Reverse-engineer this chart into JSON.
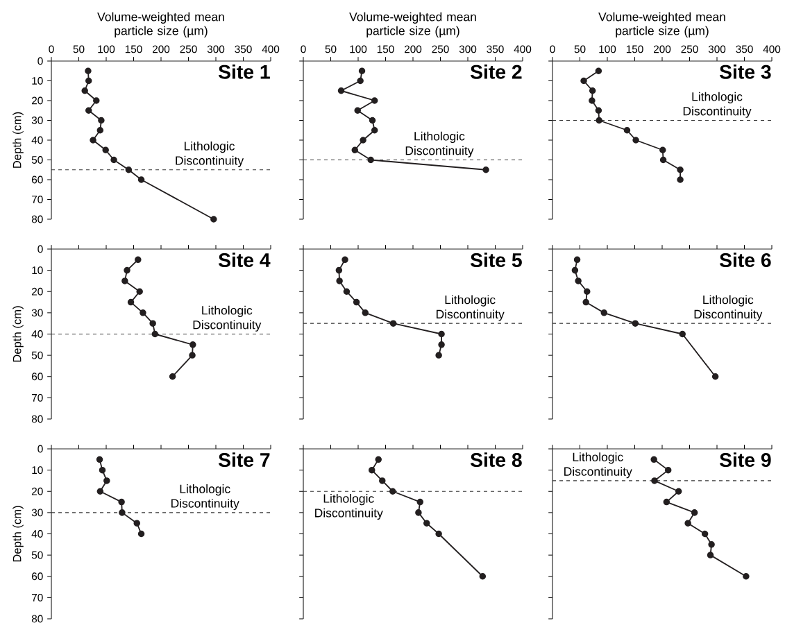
{
  "chart_data": [
    {
      "type": "line",
      "title": "Site 1",
      "xlabel": "Volume-weighted mean particle size (µm)",
      "ylabel": "Depth (cm)",
      "xlim": [
        0,
        400
      ],
      "xticks": [
        0,
        50,
        100,
        150,
        200,
        250,
        300,
        350,
        400
      ],
      "ylim": [
        80,
        0
      ],
      "yticks": [
        0,
        10,
        20,
        30,
        40,
        50,
        60,
        70,
        80
      ],
      "marker": "circle",
      "line_style": "solid",
      "series": [
        {
          "color": "#231f20",
          "x": [
            67,
            68,
            61,
            82,
            68,
            91,
            89,
            76,
            99,
            114,
            141,
            164,
            296
          ],
          "values": [
            5,
            10,
            15,
            20,
            25,
            30,
            35,
            40,
            45,
            50,
            55,
            60,
            80
          ]
        }
      ],
      "ref_lines": [
        {
          "axis": "y",
          "value": 55,
          "label": "Lithologic Discontinuity",
          "line_style": "dashed"
        }
      ]
    },
    {
      "type": "line",
      "title": "Site 2",
      "xlabel": "Volume-weighted mean particle size (µm)",
      "xlim": [
        0,
        400
      ],
      "xticks": [
        0,
        50,
        100,
        150,
        200,
        250,
        300,
        350,
        400
      ],
      "ylim": [
        80,
        0
      ],
      "yticks": [
        0,
        10,
        20,
        30,
        40,
        50,
        60,
        70,
        80
      ],
      "tick_labels": "x",
      "marker": "circle",
      "line_style": "solid",
      "series": [
        {
          "color": "#231f20",
          "x": [
            107,
            104,
            69,
            130,
            99,
            126,
            130,
            109,
            94,
            123,
            333
          ],
          "values": [
            5,
            10,
            15,
            20,
            25,
            30,
            35,
            40,
            45,
            50,
            55
          ]
        }
      ],
      "ref_lines": [
        {
          "axis": "y",
          "value": 50,
          "label": "Lithologic Discontinuity",
          "line_style": "dashed"
        }
      ]
    },
    {
      "type": "line",
      "title": "Site 3",
      "xlabel": "Volume-weighted mean particle size (µm)",
      "xlim": [
        0,
        400
      ],
      "xticks": [
        0,
        50,
        100,
        150,
        200,
        250,
        300,
        350,
        400
      ],
      "ylim": [
        80,
        0
      ],
      "yticks": [
        0,
        10,
        20,
        30,
        40,
        50,
        60,
        70,
        80
      ],
      "tick_labels": "x",
      "marker": "circle",
      "line_style": "solid",
      "series": [
        {
          "color": "#231f20",
          "x": [
            84,
            57,
            73,
            72,
            84,
            85,
            136,
            152,
            201,
            202,
            233,
            233
          ],
          "values": [
            5,
            10,
            15,
            20,
            25,
            30,
            35,
            40,
            45,
            50,
            55,
            60
          ]
        }
      ],
      "ref_lines": [
        {
          "axis": "y",
          "value": 30,
          "label": "Lithologic Discontinuity",
          "line_style": "dashed"
        }
      ]
    },
    {
      "type": "line",
      "title": "Site 4",
      "ylabel": "Depth (cm)",
      "xlim": [
        0,
        400
      ],
      "xticks": [
        0,
        50,
        100,
        150,
        200,
        250,
        300,
        350,
        400
      ],
      "ylim": [
        80,
        0
      ],
      "yticks": [
        0,
        10,
        20,
        30,
        40,
        50,
        60,
        70,
        80
      ],
      "tick_labels": "y",
      "marker": "circle",
      "line_style": "solid",
      "series": [
        {
          "color": "#231f20",
          "x": [
            158,
            138,
            134,
            161,
            145,
            167,
            185,
            189,
            258,
            257,
            221
          ],
          "values": [
            5,
            10,
            15,
            20,
            25,
            30,
            35,
            40,
            45,
            50,
            60
          ]
        }
      ],
      "ref_lines": [
        {
          "axis": "y",
          "value": 40,
          "label": "Lithologic Discontinuity",
          "line_style": "dashed"
        }
      ]
    },
    {
      "type": "line",
      "title": "Site 5",
      "xlim": [
        0,
        400
      ],
      "xticks": [
        0,
        50,
        100,
        150,
        200,
        250,
        300,
        350,
        400
      ],
      "ylim": [
        80,
        0
      ],
      "yticks": [
        0,
        10,
        20,
        30,
        40,
        50,
        60,
        70,
        80
      ],
      "tick_labels": false,
      "marker": "circle",
      "line_style": "solid",
      "series": [
        {
          "color": "#231f20",
          "x": [
            76,
            65,
            66,
            79,
            97,
            113,
            164,
            252,
            252,
            247
          ],
          "values": [
            5,
            10,
            15,
            20,
            25,
            30,
            35,
            40,
            45,
            50
          ]
        }
      ],
      "ref_lines": [
        {
          "axis": "y",
          "value": 35,
          "label": "Lithologic Discontinuity",
          "line_style": "dashed"
        }
      ]
    },
    {
      "type": "line",
      "title": "Site 6",
      "xlim": [
        0,
        400
      ],
      "xticks": [
        0,
        50,
        100,
        150,
        200,
        250,
        300,
        350,
        400
      ],
      "ylim": [
        80,
        0
      ],
      "yticks": [
        0,
        10,
        20,
        30,
        40,
        50,
        60,
        70,
        80
      ],
      "tick_labels": false,
      "marker": "circle",
      "line_style": "solid",
      "series": [
        {
          "color": "#231f20",
          "x": [
            45,
            41,
            47,
            63,
            61,
            94,
            151,
            237,
            297
          ],
          "values": [
            5,
            10,
            15,
            20,
            25,
            30,
            35,
            40,
            60
          ]
        }
      ],
      "ref_lines": [
        {
          "axis": "y",
          "value": 35,
          "label": "Lithologic Discontinuity",
          "line_style": "dashed"
        }
      ]
    },
    {
      "type": "line",
      "title": "Site 7",
      "ylabel": "Depth (cm)",
      "xlim": [
        0,
        400
      ],
      "xticks": [
        0,
        50,
        100,
        150,
        200,
        250,
        300,
        350,
        400
      ],
      "ylim": [
        80,
        0
      ],
      "yticks": [
        0,
        10,
        20,
        30,
        40,
        50,
        60,
        70,
        80
      ],
      "tick_labels": "y",
      "marker": "circle",
      "line_style": "solid",
      "series": [
        {
          "color": "#231f20",
          "x": [
            88,
            93,
            101,
            89,
            128,
            129,
            156,
            164
          ],
          "values": [
            5,
            10,
            15,
            20,
            25,
            30,
            35,
            40
          ]
        }
      ],
      "ref_lines": [
        {
          "axis": "y",
          "value": 30,
          "label": "Lithologic Discontinuity",
          "line_style": "dashed"
        }
      ]
    },
    {
      "type": "line",
      "title": "Site 8",
      "xlim": [
        0,
        400
      ],
      "xticks": [
        0,
        50,
        100,
        150,
        200,
        250,
        300,
        350,
        400
      ],
      "ylim": [
        80,
        0
      ],
      "yticks": [
        0,
        10,
        20,
        30,
        40,
        50,
        60,
        70,
        80
      ],
      "tick_labels": false,
      "marker": "circle",
      "line_style": "solid",
      "series": [
        {
          "color": "#231f20",
          "x": [
            137,
            125,
            144,
            163,
            213,
            210,
            225,
            247,
            327
          ],
          "values": [
            5,
            10,
            15,
            20,
            25,
            30,
            35,
            40,
            60
          ]
        }
      ],
      "ref_lines": [
        {
          "axis": "y",
          "value": 20,
          "label": "Lithologic Discontinuity",
          "line_style": "dashed"
        }
      ]
    },
    {
      "type": "line",
      "title": "Site 9",
      "xlim": [
        0,
        400
      ],
      "xticks": [
        0,
        50,
        100,
        150,
        200,
        250,
        300,
        350,
        400
      ],
      "ylim": [
        80,
        0
      ],
      "yticks": [
        0,
        10,
        20,
        30,
        40,
        50,
        60,
        70,
        80
      ],
      "tick_labels": false,
      "marker": "circle",
      "line_style": "solid",
      "series": [
        {
          "color": "#231f20",
          "x": [
            185,
            211,
            186,
            230,
            208,
            259,
            247,
            278,
            290,
            288,
            353
          ],
          "values": [
            5,
            10,
            15,
            20,
            25,
            30,
            35,
            40,
            45,
            50,
            60
          ]
        }
      ],
      "ref_lines": [
        {
          "axis": "y",
          "value": 15,
          "label": "Lithologic Discontinuity",
          "line_style": "dashed"
        }
      ]
    }
  ]
}
